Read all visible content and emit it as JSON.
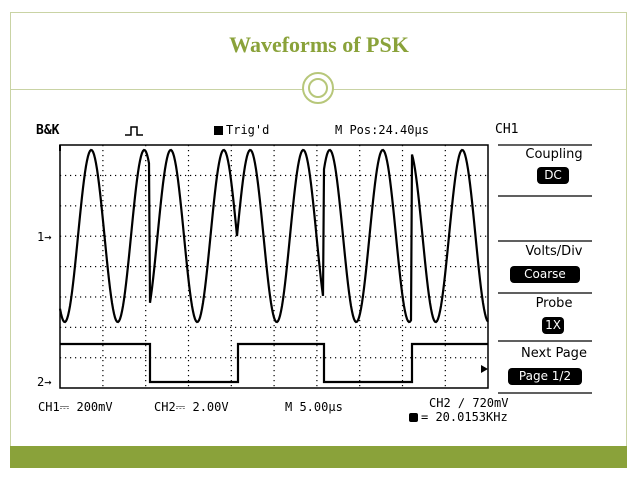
{
  "slide": {
    "title": "Waveforms of PSK"
  },
  "scope": {
    "header": {
      "brand": "B&K",
      "trigger_mode": "Trig'd",
      "position": "M Pos:24.40µs",
      "channel": "CH1"
    },
    "menu": {
      "coupling_label": "Coupling",
      "coupling_value": "DC",
      "volts_label": "Volts/Div",
      "volts_value": "Coarse",
      "probe_label": "Probe",
      "probe_value": "1X",
      "next_label": "Next Page",
      "next_value": "Page 1/2"
    },
    "markers": {
      "ch1": "1→",
      "ch2": "2→"
    },
    "footer": {
      "ch1_scale": "CH1⎓ 200mV",
      "ch2_scale": "CH2⎓ 2.00V",
      "timebase": "M 5.00µs",
      "trigger": "CH2 ∕ 720mV",
      "frequency": "= 20.0153KHz"
    },
    "icons": [
      "pulse-icon",
      "trigger-icon",
      "frequency-icon"
    ],
    "colors": {
      "trace": "#000000",
      "grid": "#000000",
      "frame": "#c9d3a4",
      "accent": "#8aa23a"
    }
  }
}
